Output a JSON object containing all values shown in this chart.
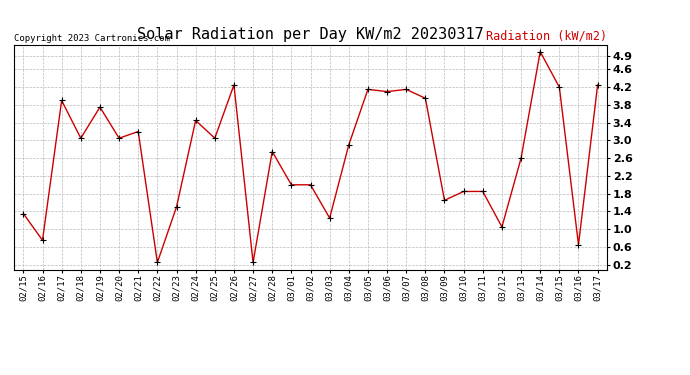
{
  "title": "Solar Radiation per Day KW/m2 20230317",
  "copyright": "Copyright 2023 Cartronics.com",
  "legend_label": "Radiation (kW/m2)",
  "dates": [
    "02/15",
    "02/16",
    "02/17",
    "02/18",
    "02/19",
    "02/20",
    "02/21",
    "02/22",
    "02/23",
    "02/24",
    "02/25",
    "02/26",
    "02/27",
    "02/28",
    "03/01",
    "03/02",
    "03/03",
    "03/04",
    "03/05",
    "03/06",
    "03/07",
    "03/08",
    "03/09",
    "03/10",
    "03/11",
    "03/12",
    "03/13",
    "03/14",
    "03/15",
    "03/16",
    "03/17"
  ],
  "values": [
    1.35,
    0.75,
    3.9,
    3.05,
    3.75,
    3.05,
    3.2,
    0.25,
    1.5,
    3.45,
    3.05,
    4.25,
    0.25,
    2.75,
    2.0,
    2.0,
    1.25,
    2.9,
    4.15,
    4.1,
    4.15,
    3.95,
    1.65,
    1.85,
    1.85,
    1.05,
    2.6,
    5.0,
    4.2,
    0.65,
    4.25
  ],
  "line_color": "#cc0000",
  "marker": "+",
  "marker_color": "#000000",
  "bg_color": "#ffffff",
  "grid_color": "#bbbbbb",
  "ylim": [
    0.08,
    5.15
  ],
  "yticks": [
    0.2,
    0.6,
    1.0,
    1.4,
    1.8,
    2.2,
    2.6,
    3.0,
    3.4,
    3.8,
    4.2,
    4.6,
    4.9
  ],
  "title_fontsize": 11,
  "copyright_fontsize": 6.5,
  "legend_fontsize": 8.5,
  "tick_fontsize": 6.5,
  "ytick_fontsize": 8
}
